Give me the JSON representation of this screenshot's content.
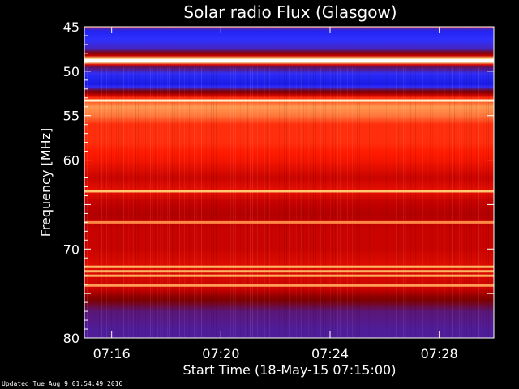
{
  "chart_data": {
    "type": "heatmap",
    "title": "Solar radio Flux (Glasgow)",
    "xlabel": "Start Time (18-May-15 07:15:00)",
    "ylabel": "Frequency [MHz]",
    "y_axis": {
      "range": [
        45,
        80
      ],
      "reversed": true,
      "scale": "linear",
      "ticks": [
        45,
        50,
        55,
        60,
        65,
        70,
        75,
        80
      ],
      "tick_labels": [
        "45",
        "50",
        "55",
        "60",
        "",
        "70",
        "",
        "80"
      ]
    },
    "x_axis": {
      "range": [
        "07:15:00",
        "07:30:00"
      ],
      "ticks": [
        "07:16",
        "07:20",
        "07:24",
        "07:28"
      ]
    },
    "colormap": [
      "#0000c8",
      "#3030ff",
      "#800000",
      "#c00000",
      "#ff1a00",
      "#ff8040",
      "#ffe080",
      "#ffffff"
    ],
    "intensity_profile": [
      {
        "mhz": 45.0,
        "level": 0.55
      },
      {
        "mhz": 45.3,
        "level": 0.1
      },
      {
        "mhz": 47.5,
        "level": 0.18
      },
      {
        "mhz": 48.2,
        "level": 0.35
      },
      {
        "mhz": 48.6,
        "level": 0.95
      },
      {
        "mhz": 49.0,
        "level": 0.9
      },
      {
        "mhz": 49.4,
        "level": 0.25
      },
      {
        "mhz": 50.5,
        "level": 0.12
      },
      {
        "mhz": 51.5,
        "level": 0.08
      },
      {
        "mhz": 52.5,
        "level": 0.35
      },
      {
        "mhz": 53.0,
        "level": 0.6
      },
      {
        "mhz": 54.0,
        "level": 0.75
      },
      {
        "mhz": 55.0,
        "level": 0.7
      },
      {
        "mhz": 56.0,
        "level": 0.6
      },
      {
        "mhz": 58.0,
        "level": 0.6
      },
      {
        "mhz": 60.0,
        "level": 0.55
      },
      {
        "mhz": 62.0,
        "level": 0.45
      },
      {
        "mhz": 63.5,
        "level": 0.52
      },
      {
        "mhz": 64.5,
        "level": 0.45
      },
      {
        "mhz": 66.0,
        "level": 0.4
      },
      {
        "mhz": 68.0,
        "level": 0.45
      },
      {
        "mhz": 70.0,
        "level": 0.45
      },
      {
        "mhz": 72.0,
        "level": 0.5
      },
      {
        "mhz": 74.5,
        "level": 0.45
      },
      {
        "mhz": 75.5,
        "level": 0.3
      },
      {
        "mhz": 77.0,
        "level": 0.22
      },
      {
        "mhz": 79.0,
        "level": 0.2
      },
      {
        "mhz": 80.0,
        "level": 0.2
      }
    ],
    "bright_lines_mhz": [
      48.8,
      53.3,
      63.5,
      67.0,
      72.0,
      72.5,
      73.0,
      74.1
    ]
  },
  "footer": {
    "updated": "Updated Tue Aug  9 01:54:49 2016"
  }
}
